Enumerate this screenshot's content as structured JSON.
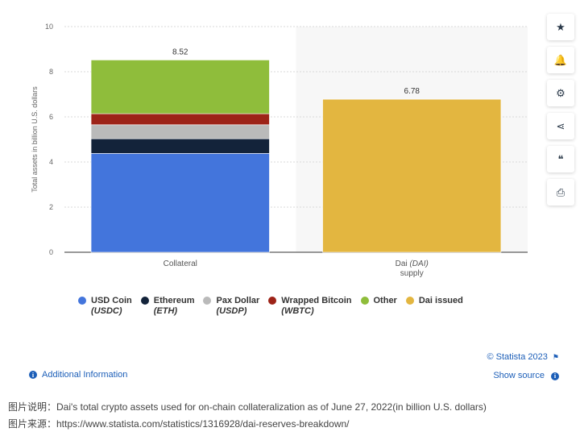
{
  "chart_data": {
    "type": "bar",
    "categories": [
      "Collateral",
      "Dai (DAI) supply"
    ],
    "category_display": [
      {
        "line1": "Collateral",
        "line1_italic": "",
        "line2": ""
      },
      {
        "line1": "Dai ",
        "line1_italic": "(DAI)",
        "line2": "supply"
      }
    ],
    "series": [
      {
        "name": "USD Coin",
        "ticker": "(USDC)",
        "color": "#4375dc",
        "values": [
          4.38,
          0
        ]
      },
      {
        "name": "Ethereum",
        "ticker": "(ETH)",
        "color": "#13233a",
        "values": [
          0.65,
          0
        ]
      },
      {
        "name": "Pax Dollar",
        "ticker": "(USDP)",
        "color": "#bababa",
        "values": [
          0.62,
          0
        ]
      },
      {
        "name": "Wrapped Bitcoin",
        "ticker": "(WBTC)",
        "color": "#9d2318",
        "values": [
          0.49,
          0
        ]
      },
      {
        "name": "Other",
        "ticker": "",
        "color": "#8fbd3b",
        "values": [
          2.38,
          0
        ]
      },
      {
        "name": "Dai issued",
        "ticker": "",
        "color": "#e3b640",
        "values": [
          0,
          6.78
        ]
      }
    ],
    "totals": [
      "8.52",
      "6.78"
    ],
    "stacked": true,
    "ylabel": "Total assets in billion U.S. dollars",
    "ylim": [
      0,
      10
    ],
    "yticks": [
      0,
      2,
      4,
      6,
      8,
      10
    ],
    "grid": true,
    "legend_position": "bottom"
  },
  "toolbar": {
    "icons": [
      "star-icon",
      "bell-icon",
      "gear-icon",
      "share-icon",
      "quote-icon",
      "print-icon"
    ],
    "glyphs": [
      "★",
      "🔔",
      "⚙",
      "⋖",
      "❝",
      "⎙"
    ]
  },
  "footer": {
    "copyright": "© Statista 2023",
    "show_source": "Show source",
    "additional_info": "Additional Information"
  },
  "caption": {
    "line1": "图片说明：Dai's total crypto assets used for on-chain collateralization as of June 27, 2022(in billion U.S. dollars)",
    "line2": "图片来源：https://www.statista.com/statistics/1316928/dai-reserves-breakdown/"
  }
}
